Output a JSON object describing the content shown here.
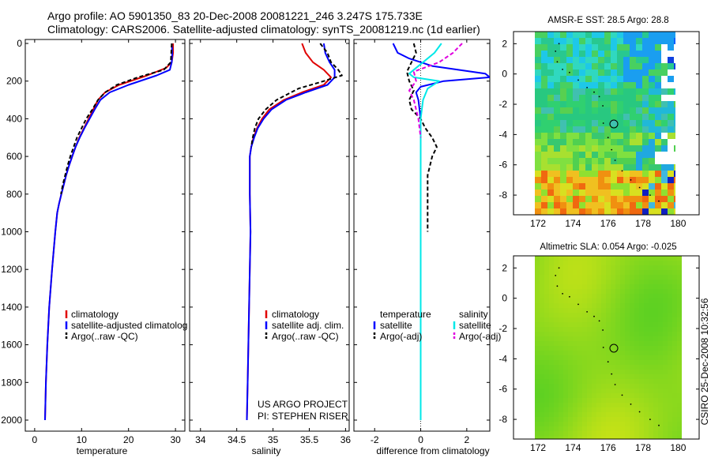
{
  "header": {
    "line1": "Argo profile: AO 5901350_83 20-Dec-2008 20081221_246 3.247S 175.733E",
    "line2": "Climatology: CARS2006. Satellite-adjusted climatology: synTS_20081219.nc (1d earlier)"
  },
  "side_label": "CSIRO 25-Dec-2008 10:32:56",
  "panels": {
    "temp": {
      "xlabel": "temperature",
      "xticks": [
        "0",
        "10",
        "20",
        "30"
      ],
      "legend": [
        "climatology",
        "satellite-adjusted climatolog",
        "Argo(..raw -QC)"
      ]
    },
    "sal": {
      "xlabel": "salinity",
      "xticks": [
        "34",
        "34.5",
        "35",
        "35.5",
        "36"
      ],
      "legend": [
        "climatology",
        "satellite adj. clim.",
        "Argo(..raw -QC)"
      ],
      "note1": "US ARGO PROJECT",
      "note2": "PI: STEPHEN RISER"
    },
    "diff": {
      "xlabel": "difference from climatology",
      "xticks": [
        "-2",
        "0",
        "2"
      ],
      "legend_t_head": "temperature",
      "legend_t": [
        "satellite",
        "Argo(-adj)"
      ],
      "legend_s_head": "salinity",
      "legend_s": [
        "satellite",
        "Argo(-adj)"
      ]
    },
    "yticks": [
      "0",
      "200",
      "400",
      "600",
      "800",
      "1000",
      "1200",
      "1400",
      "1600",
      "1800",
      "2000"
    ]
  },
  "maps": {
    "sst": {
      "title": "AMSR-E SST: 28.5 Argo: 28.8",
      "xticks": [
        "172",
        "174",
        "176",
        "178",
        "180"
      ],
      "yticks": [
        "2",
        "0",
        "-2",
        "-4",
        "-6",
        "-8"
      ]
    },
    "sla": {
      "title": "Altimetric SLA: 0.054 Argo: -0.025",
      "xticks": [
        "172",
        "174",
        "176",
        "178",
        "180"
      ],
      "yticks": [
        "2",
        "0",
        "-2",
        "-4",
        "-6",
        "-8"
      ]
    }
  },
  "colors": {
    "climatology": "#e00000",
    "satellite": "#0000ff",
    "argo": "#000000",
    "sal_satellite": "#00e8e8",
    "sal_argo": "#e000e0"
  },
  "chart_data": [
    {
      "type": "line",
      "xlabel": "temperature",
      "ylabel": "",
      "xlim": [
        -2,
        32
      ],
      "ylim": [
        2050,
        0
      ],
      "series": [
        {
          "name": "climatology",
          "x": [
            29.5,
            29.5,
            29.2,
            28.0,
            24.0,
            18.0,
            15.0,
            13.5,
            12.5,
            11.5,
            10.5,
            9.5,
            8.7,
            8.0,
            7.3,
            6.7,
            6.2,
            5.7,
            5.2,
            4.8,
            4.4,
            3.7,
            3.1,
            2.7,
            2.4,
            2.2
          ],
          "y": [
            0,
            50,
            100,
            130,
            170,
            220,
            260,
            300,
            350,
            400,
            450,
            500,
            550,
            600,
            650,
            700,
            750,
            800,
            850,
            900,
            1000,
            1200,
            1400,
            1600,
            1800,
            2000
          ]
        },
        {
          "name": "satellite-adjusted climatolog",
          "x": [
            29.2,
            29.3,
            29.2,
            28.8,
            26.0,
            20.0,
            16.0,
            14.0,
            12.8,
            11.7,
            10.6,
            9.6,
            8.7,
            8.0,
            7.3,
            6.7,
            6.2,
            5.7,
            5.2,
            4.8,
            4.4,
            3.7,
            3.1,
            2.7,
            2.4,
            2.2
          ],
          "y": [
            0,
            50,
            100,
            140,
            170,
            220,
            260,
            300,
            350,
            400,
            450,
            500,
            550,
            600,
            650,
            700,
            750,
            800,
            850,
            900,
            1000,
            1200,
            1400,
            1600,
            1800,
            2000
          ]
        },
        {
          "name": "Argo(..raw -QC)",
          "x": [
            29.2,
            29.1,
            29.0,
            27.5,
            22.0,
            17.5,
            15.0,
            13.5,
            12.3,
            11.0,
            10.0,
            9.0,
            8.3,
            7.6,
            7.0,
            6.5,
            6.0,
            5.6
          ],
          "y": [
            0,
            50,
            100,
            140,
            180,
            220,
            260,
            300,
            350,
            400,
            450,
            500,
            550,
            600,
            650,
            700,
            750,
            800
          ]
        }
      ]
    },
    {
      "type": "line",
      "xlabel": "salinity",
      "ylabel": "",
      "xlim": [
        33.85,
        36.05
      ],
      "ylim": [
        2050,
        0
      ],
      "series": [
        {
          "name": "climatology",
          "x": [
            35.4,
            35.45,
            35.55,
            35.7,
            35.8,
            35.7,
            35.4,
            35.15,
            34.95,
            34.85,
            34.78,
            34.73,
            34.7,
            34.68,
            34.68,
            34.68,
            34.69,
            34.67,
            34.66,
            34.65,
            34.64
          ],
          "y": [
            0,
            50,
            100,
            140,
            180,
            220,
            260,
            300,
            350,
            400,
            450,
            500,
            550,
            600,
            700,
            800,
            1000,
            1400,
            1600,
            1800,
            2000
          ]
        },
        {
          "name": "satellite adj. clim.",
          "x": [
            35.7,
            35.72,
            35.78,
            35.85,
            35.85,
            35.75,
            35.45,
            35.18,
            34.98,
            34.87,
            34.79,
            34.74,
            34.7,
            34.68,
            34.68,
            34.68,
            34.69,
            34.67,
            34.66,
            34.65,
            34.64
          ],
          "y": [
            0,
            50,
            100,
            140,
            180,
            220,
            260,
            300,
            350,
            400,
            450,
            500,
            550,
            600,
            700,
            800,
            1000,
            1400,
            1600,
            1800,
            2000
          ]
        },
        {
          "name": "Argo(..raw -QC)",
          "x": [
            35.65,
            35.75,
            35.8,
            35.9,
            35.95,
            35.7,
            35.35,
            35.05,
            34.9,
            34.8,
            34.75,
            34.72,
            34.7
          ],
          "y": [
            0,
            50,
            100,
            140,
            170,
            200,
            240,
            300,
            350,
            400,
            450,
            500,
            550
          ]
        }
      ]
    },
    {
      "type": "line",
      "xlabel": "difference from climatology",
      "ylabel": "",
      "xlim": [
        -2.9,
        3.0
      ],
      "ylim": [
        2050,
        0
      ],
      "series": [
        {
          "name": "temperature satellite",
          "x": [
            -1.2,
            -1.0,
            -0.5,
            0.5,
            2.8,
            3.0,
            1.0,
            0.0,
            -0.2,
            -0.1,
            0.0,
            0.0,
            0.0,
            0.0
          ],
          "y": [
            0,
            50,
            80,
            120,
            160,
            180,
            200,
            230,
            260,
            300,
            400,
            600,
            1000,
            2000
          ]
        },
        {
          "name": "temperature Argo(-adj)",
          "x": [
            -0.3,
            -0.2,
            -0.4,
            -0.6,
            -0.5,
            -0.3,
            -0.5,
            -0.4,
            0.0,
            0.2,
            0.5,
            0.7,
            0.5,
            0.4,
            0.3,
            0.3,
            0.3
          ],
          "y": [
            0,
            50,
            100,
            150,
            200,
            250,
            300,
            350,
            400,
            450,
            500,
            550,
            600,
            650,
            700,
            800,
            1000
          ]
        },
        {
          "name": "salinity satellite",
          "x": [
            0.9,
            0.6,
            0.1,
            -0.5,
            -0.3,
            0.8,
            0.3,
            0.1,
            0.0,
            0.0,
            0.0
          ],
          "y": [
            0,
            50,
            100,
            160,
            180,
            200,
            240,
            300,
            400,
            1000,
            2000
          ]
        },
        {
          "name": "salinity Argo(-adj)",
          "x": [
            1.8,
            1.4,
            0.8,
            -0.3,
            -0.2,
            -0.5,
            -0.3,
            -0.1,
            0.0
          ],
          "y": [
            0,
            50,
            100,
            150,
            200,
            250,
            300,
            400,
            500
          ]
        }
      ]
    }
  ]
}
